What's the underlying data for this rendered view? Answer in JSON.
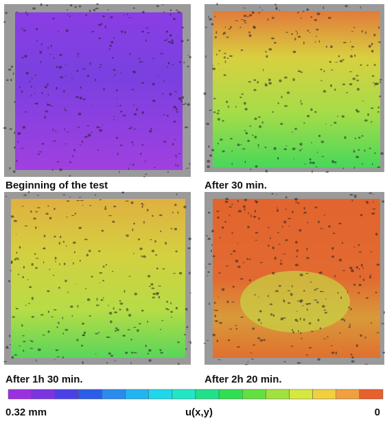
{
  "panels": [
    {
      "caption": "Beginning of the test"
    },
    {
      "caption": "After 30 min."
    },
    {
      "caption": "After 1h 30 min."
    },
    {
      "caption": "After 2h 20 min."
    }
  ],
  "colorbar": {
    "min_label": "0.32 mm",
    "title": "u(x,y)",
    "max_label": "0",
    "colors": [
      "#9b30e0",
      "#7b34e2",
      "#4b40e6",
      "#2c5de8",
      "#2a8aee",
      "#22b4f0",
      "#20d6ea",
      "#20e6c4",
      "#22e08a",
      "#30de52",
      "#62e040",
      "#a2e23e",
      "#d6e840",
      "#f0cf40",
      "#f0a03e",
      "#e8602e"
    ]
  }
}
